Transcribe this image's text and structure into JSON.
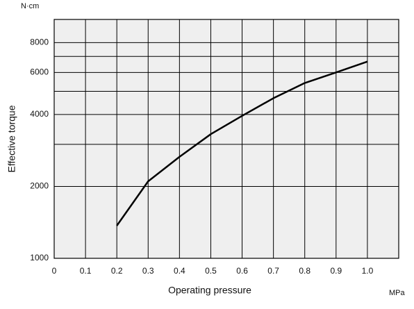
{
  "chart_data": {
    "type": "line",
    "y_unit": "N·cm",
    "x_unit": "MPa",
    "ylabel": "Effective torque",
    "xlabel": "Operating pressure",
    "x": [
      0.2,
      0.3,
      0.4,
      0.5,
      0.6,
      0.7,
      0.8,
      0.9,
      1.0
    ],
    "series": [
      {
        "color": "#000000",
        "values": [
          1370,
          2100,
          2660,
          3310,
          3950,
          4680,
          5420,
          6000,
          6660
        ]
      }
    ],
    "xlim": [
      0,
      1.1
    ],
    "xticks": [
      0,
      0.1,
      0.2,
      0.3,
      0.4,
      0.5,
      0.6,
      0.7,
      0.8,
      0.9,
      {
        "value": 1,
        "label": "1.0"
      }
    ],
    "ylim": [
      1000,
      10000
    ],
    "yscale": "log",
    "yticks": [
      1000,
      2000,
      4000,
      6000,
      8000
    ],
    "yminor": [
      3000,
      5000,
      7000
    ],
    "grid": true
  }
}
